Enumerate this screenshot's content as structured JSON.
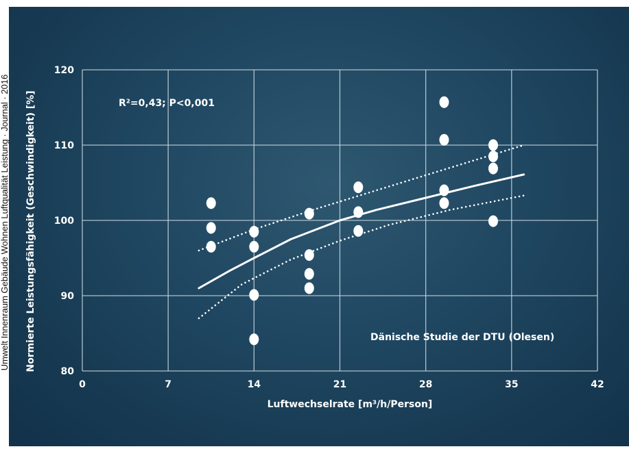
{
  "side_caption": "Umwelt Innenraum Gebäude Wohnen Luftqualität Leistung · Journal · 2016",
  "chart_data": {
    "type": "scatter",
    "xlabel": "Luftwechselrate [m³/h/Person]",
    "ylabel": "Normierte Leistungsfähigkeit (Geschwindigkeit)   [%]",
    "xlim": [
      0,
      42
    ],
    "ylim": [
      80,
      120
    ],
    "x_ticks": [
      0,
      7,
      14,
      21,
      28,
      35,
      42
    ],
    "y_ticks": [
      80,
      90,
      100,
      110,
      120
    ],
    "grid": true,
    "annotations": [
      "R²=0,43;  P<0,001",
      "Dänische Studie der DTU (Olesen)"
    ],
    "series": [
      {
        "kind": "points",
        "points": [
          [
            10.5,
            102.3
          ],
          [
            10.5,
            99.0
          ],
          [
            10.5,
            96.5
          ],
          [
            14.0,
            98.5
          ],
          [
            14.0,
            96.5
          ],
          [
            14.0,
            90.1
          ],
          [
            14.0,
            84.2
          ],
          [
            18.5,
            100.9
          ],
          [
            18.5,
            95.4
          ],
          [
            18.5,
            92.9
          ],
          [
            18.5,
            91.0
          ],
          [
            22.5,
            104.4
          ],
          [
            22.5,
            101.1
          ],
          [
            22.5,
            98.6
          ],
          [
            29.5,
            115.7
          ],
          [
            29.5,
            110.7
          ],
          [
            29.5,
            104.0
          ],
          [
            29.5,
            102.3
          ],
          [
            33.5,
            110.0
          ],
          [
            33.5,
            108.5
          ],
          [
            33.5,
            106.9
          ],
          [
            33.5,
            99.9
          ]
        ],
        "color": "#ffffff"
      },
      {
        "kind": "fit",
        "style": "solid",
        "x": [
          9.5,
          12,
          14,
          17,
          21,
          24,
          28,
          32,
          36
        ],
        "y": [
          91.0,
          93.3,
          95.0,
          97.5,
          100.0,
          101.4,
          103.0,
          104.6,
          106.1
        ],
        "color": "#ffffff"
      },
      {
        "kind": "upper-bound",
        "style": "dotted",
        "x": [
          9.5,
          14,
          19,
          24,
          29,
          36
        ],
        "y": [
          96.0,
          98.8,
          101.5,
          104.0,
          106.5,
          110.0
        ],
        "color": "#ffffff"
      },
      {
        "kind": "lower-bound",
        "style": "dotted",
        "x": [
          9.5,
          13,
          17,
          21,
          25,
          30,
          36
        ],
        "y": [
          87.0,
          91.5,
          94.8,
          97.3,
          99.4,
          101.4,
          103.3
        ],
        "color": "#ffffff"
      }
    ]
  }
}
